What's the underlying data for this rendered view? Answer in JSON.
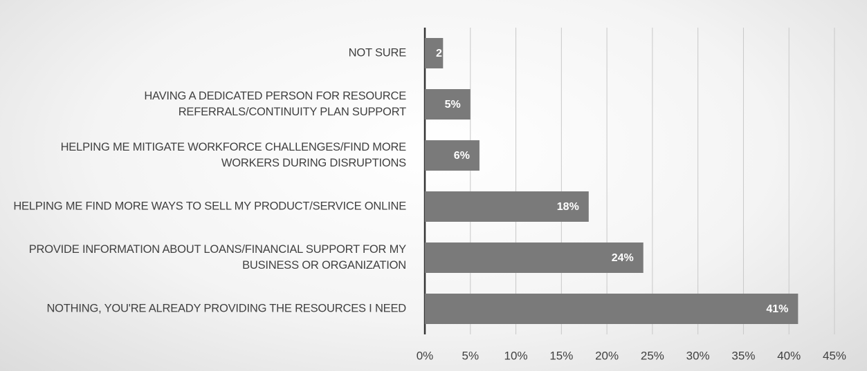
{
  "chart_data": {
    "type": "barh",
    "categories": [
      "NOT SURE",
      "HAVING A DEDICATED PERSON FOR RESOURCE REFERRALS/CONTINUITY PLAN SUPPORT",
      "HELPING ME MITIGATE WORKFORCE CHALLENGES/FIND MORE WORKERS DURING DISRUPTIONS",
      "HELPING ME FIND MORE WAYS TO SELL MY PRODUCT/SERVICE ONLINE",
      "PROVIDE INFORMATION ABOUT LOANS/FINANCIAL SUPPORT FOR MY BUSINESS OR ORGANIZATION",
      "NOTHING, YOU'RE ALREADY PROVIDING THE RESOURCES I NEED"
    ],
    "values": [
      2,
      5,
      6,
      18,
      24,
      41
    ],
    "value_labels": [
      "2",
      "5%",
      "6%",
      "18%",
      "24%",
      "41%"
    ],
    "color": "#7a7a7a",
    "xlim": [
      0,
      45
    ],
    "xticks": [
      {
        "value": 0,
        "label": "0%"
      },
      {
        "value": 5,
        "label": "5%"
      },
      {
        "value": 10,
        "label": "10%"
      },
      {
        "value": 15,
        "label": "15%"
      },
      {
        "value": 20,
        "label": "20%"
      },
      {
        "value": 25,
        "label": "25%"
      },
      {
        "value": 30,
        "label": "30%"
      },
      {
        "value": 35,
        "label": "35%"
      },
      {
        "value": 40,
        "label": "40%"
      },
      {
        "value": 45,
        "label": "45%"
      }
    ],
    "grid": true
  }
}
